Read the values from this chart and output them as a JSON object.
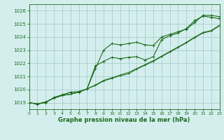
{
  "title": "Graphe pression niveau de la mer (hPa)",
  "bg_color": "#d4eeee",
  "grid_color": "#aacccc",
  "line_color": "#1a6b1a",
  "ylim": [
    1018.5,
    1026.5
  ],
  "xlim": [
    0,
    23
  ],
  "yticks": [
    1019,
    1020,
    1021,
    1022,
    1023,
    1024,
    1025,
    1026
  ],
  "xticks": [
    0,
    1,
    2,
    3,
    4,
    5,
    6,
    7,
    8,
    9,
    10,
    11,
    12,
    13,
    14,
    15,
    16,
    17,
    18,
    19,
    20,
    21,
    22,
    23
  ],
  "series": [
    [
      1019.0,
      1018.9,
      1019.0,
      1019.4,
      1019.6,
      1019.8,
      1019.85,
      1020.05,
      1021.6,
      1023.0,
      1023.5,
      1023.4,
      1023.5,
      1023.6,
      1023.4,
      1023.35,
      1024.0,
      1024.2,
      1024.4,
      1024.6,
      1025.1,
      1025.65,
      1025.65,
      1025.55
    ],
    [
      1019.0,
      1018.9,
      1019.05,
      1019.35,
      1019.55,
      1019.65,
      1019.8,
      1020.05,
      1020.35,
      1020.7,
      1020.9,
      1021.1,
      1021.3,
      1021.6,
      1021.9,
      1022.2,
      1022.55,
      1022.9,
      1023.25,
      1023.6,
      1024.0,
      1024.35,
      1024.5,
      1024.9
    ],
    [
      1019.0,
      1018.9,
      1019.05,
      1019.35,
      1019.55,
      1019.65,
      1019.8,
      1020.05,
      1020.3,
      1020.65,
      1020.85,
      1021.05,
      1021.2,
      1021.55,
      1021.85,
      1022.15,
      1022.5,
      1022.85,
      1023.2,
      1023.55,
      1023.95,
      1024.3,
      1024.45,
      1024.85
    ],
    [
      1019.0,
      1018.9,
      1019.05,
      1019.35,
      1019.55,
      1019.65,
      1019.8,
      1020.05,
      1021.8,
      1022.15,
      1022.45,
      1022.35,
      1022.45,
      1022.5,
      1022.25,
      1022.5,
      1023.8,
      1024.1,
      1024.3,
      1024.65,
      1025.25,
      1025.6,
      1025.5,
      1025.4
    ]
  ]
}
